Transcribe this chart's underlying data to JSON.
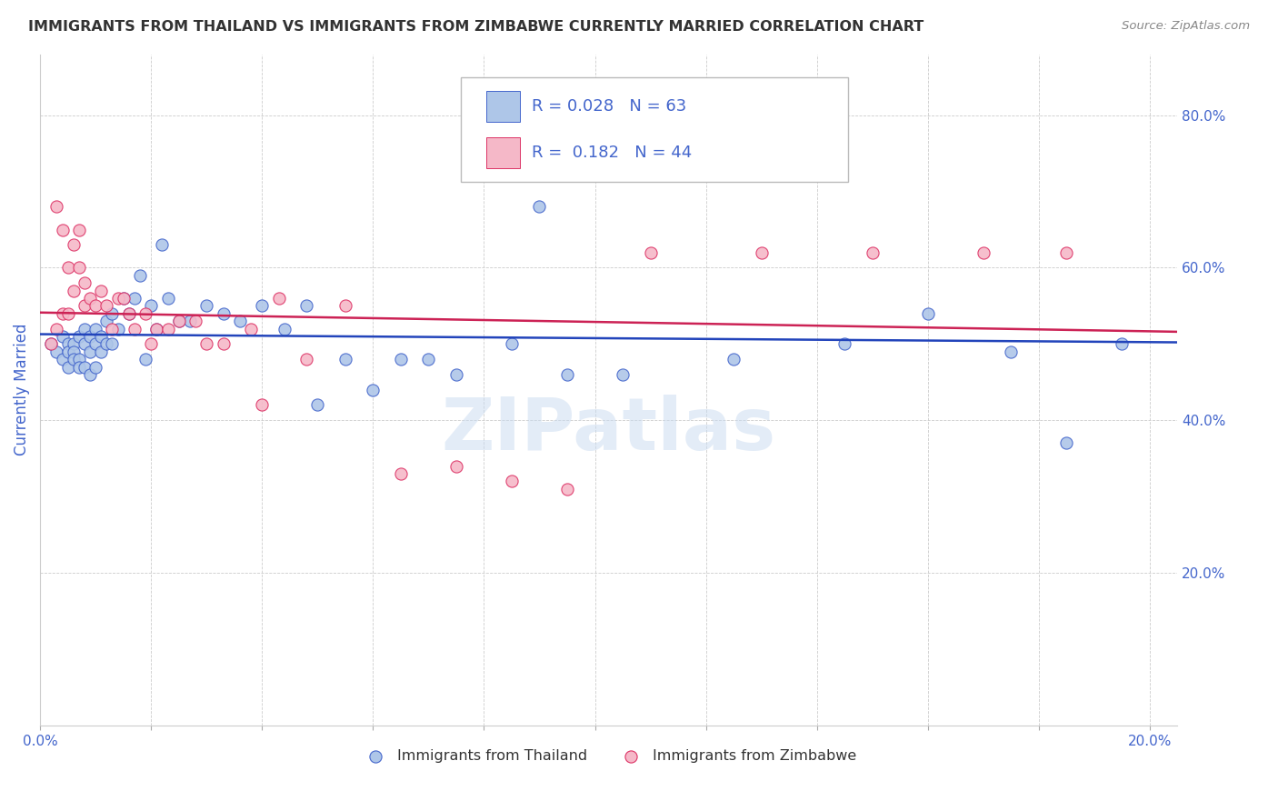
{
  "title": "IMMIGRANTS FROM THAILAND VS IMMIGRANTS FROM ZIMBABWE CURRENTLY MARRIED CORRELATION CHART",
  "source": "Source: ZipAtlas.com",
  "ylabel": "Currently Married",
  "xlim": [
    0.0,
    0.205
  ],
  "ylim": [
    0.0,
    0.88
  ],
  "legend_blue_r": "0.028",
  "legend_blue_n": "63",
  "legend_pink_r": "0.182",
  "legend_pink_n": "44",
  "blue_face_color": "#aec6e8",
  "pink_face_color": "#f5b8c8",
  "blue_edge_color": "#4466cc",
  "pink_edge_color": "#dd3366",
  "blue_line_color": "#2244bb",
  "pink_line_color": "#cc2255",
  "title_color": "#333333",
  "axis_label_color": "#4466cc",
  "grid_color": "#cccccc",
  "watermark": "ZIPatlas",
  "blue_scatter_x": [
    0.002,
    0.003,
    0.004,
    0.004,
    0.005,
    0.005,
    0.005,
    0.006,
    0.006,
    0.006,
    0.007,
    0.007,
    0.007,
    0.008,
    0.008,
    0.008,
    0.009,
    0.009,
    0.009,
    0.01,
    0.01,
    0.01,
    0.011,
    0.011,
    0.012,
    0.012,
    0.013,
    0.013,
    0.014,
    0.015,
    0.016,
    0.017,
    0.018,
    0.019,
    0.02,
    0.021,
    0.022,
    0.023,
    0.025,
    0.027,
    0.03,
    0.033,
    0.036,
    0.04,
    0.044,
    0.048,
    0.055,
    0.065,
    0.07,
    0.075,
    0.085,
    0.095,
    0.105,
    0.125,
    0.145,
    0.16,
    0.175,
    0.185,
    0.195,
    0.05,
    0.06,
    0.09,
    0.11
  ],
  "blue_scatter_y": [
    0.5,
    0.49,
    0.51,
    0.48,
    0.5,
    0.49,
    0.47,
    0.5,
    0.49,
    0.48,
    0.51,
    0.48,
    0.47,
    0.52,
    0.5,
    0.47,
    0.51,
    0.49,
    0.46,
    0.52,
    0.5,
    0.47,
    0.51,
    0.49,
    0.53,
    0.5,
    0.54,
    0.5,
    0.52,
    0.56,
    0.54,
    0.56,
    0.59,
    0.48,
    0.55,
    0.52,
    0.63,
    0.56,
    0.53,
    0.53,
    0.55,
    0.54,
    0.53,
    0.55,
    0.52,
    0.55,
    0.48,
    0.48,
    0.48,
    0.46,
    0.5,
    0.46,
    0.46,
    0.48,
    0.5,
    0.54,
    0.49,
    0.37,
    0.5,
    0.42,
    0.44,
    0.68,
    0.75
  ],
  "pink_scatter_x": [
    0.002,
    0.003,
    0.003,
    0.004,
    0.004,
    0.005,
    0.005,
    0.006,
    0.006,
    0.007,
    0.007,
    0.008,
    0.008,
    0.009,
    0.01,
    0.011,
    0.012,
    0.013,
    0.014,
    0.015,
    0.016,
    0.017,
    0.019,
    0.021,
    0.023,
    0.025,
    0.028,
    0.033,
    0.038,
    0.043,
    0.048,
    0.055,
    0.065,
    0.075,
    0.085,
    0.095,
    0.11,
    0.13,
    0.15,
    0.17,
    0.185,
    0.02,
    0.03,
    0.04
  ],
  "pink_scatter_y": [
    0.5,
    0.68,
    0.52,
    0.65,
    0.54,
    0.6,
    0.54,
    0.63,
    0.57,
    0.65,
    0.6,
    0.58,
    0.55,
    0.56,
    0.55,
    0.57,
    0.55,
    0.52,
    0.56,
    0.56,
    0.54,
    0.52,
    0.54,
    0.52,
    0.52,
    0.53,
    0.53,
    0.5,
    0.52,
    0.56,
    0.48,
    0.55,
    0.33,
    0.34,
    0.32,
    0.31,
    0.62,
    0.62,
    0.62,
    0.62,
    0.62,
    0.5,
    0.5,
    0.42
  ]
}
